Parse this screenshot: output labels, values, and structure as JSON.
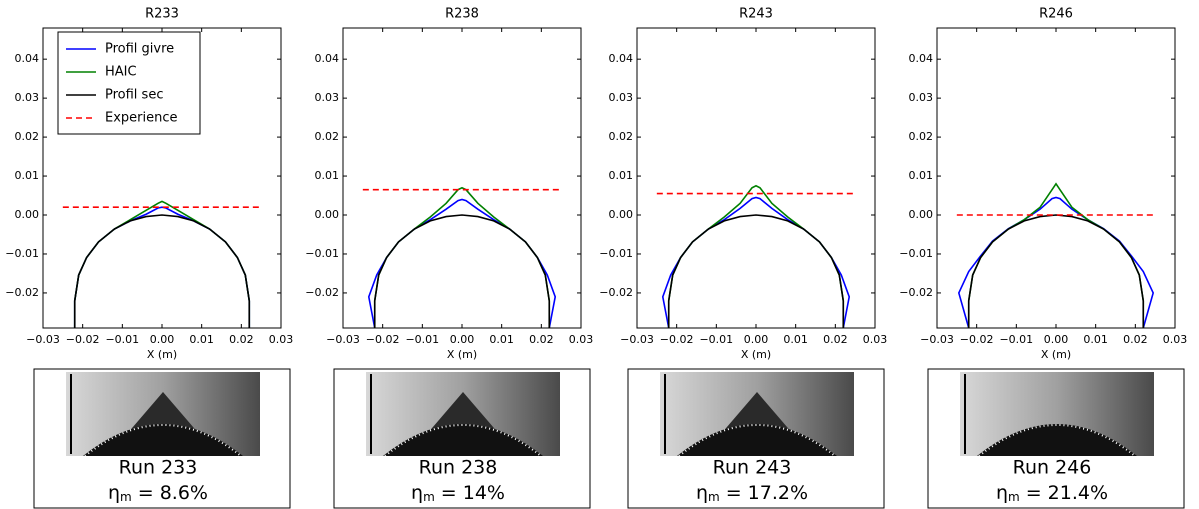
{
  "chart_data": [
    {
      "type": "line",
      "title": "R233",
      "x_label": "X (m)",
      "legend": "upper left",
      "xlim": [
        -0.03,
        0.03
      ],
      "ylim": [
        -0.029,
        0.048
      ],
      "xticks": [
        {
          "value": -0.03,
          "label": "−0.03"
        },
        {
          "value": -0.02,
          "label": "−0.02"
        },
        {
          "value": -0.01,
          "label": "−0.01"
        },
        {
          "value": 0,
          "label": "0.00"
        },
        0.01,
        0.02,
        0.03
      ],
      "yticks": [
        {
          "value": -0.02,
          "label": "−0.02"
        },
        {
          "value": -0.01,
          "label": "−0.01"
        },
        {
          "value": 0,
          "label": "0.00"
        },
        0.01,
        0.02,
        0.03,
        0.04
      ],
      "series": [
        {
          "name": "Profil givre",
          "color": "#0000ff",
          "x": [
            -0.022,
            -0.022,
            -0.021,
            -0.019,
            -0.016,
            -0.012,
            -0.008,
            -0.004,
            -0.001,
            0,
            0.001,
            0.004,
            0.008,
            0.012,
            0.016,
            0.019,
            0.021,
            0.022,
            0.022
          ],
          "values": [
            -0.029,
            -0.022,
            -0.0154,
            -0.0109,
            -0.0069,
            -0.0036,
            -0.0015,
            0.0002,
            0.0018,
            0.002,
            0.0018,
            0.0002,
            -0.0015,
            -0.0036,
            -0.0069,
            -0.0109,
            -0.0154,
            -0.022,
            -0.029
          ]
        },
        {
          "name": "HAIC",
          "color": "#008000",
          "x": [
            -0.022,
            -0.022,
            -0.021,
            -0.019,
            -0.016,
            -0.012,
            -0.008,
            -0.004,
            -0.001,
            0,
            0.001,
            0.004,
            0.008,
            0.012,
            0.016,
            0.019,
            0.021,
            0.022,
            0.022
          ],
          "values": [
            -0.029,
            -0.022,
            -0.0154,
            -0.0109,
            -0.0069,
            -0.0036,
            -0.0012,
            0.0012,
            0.003,
            0.0035,
            0.003,
            0.0012,
            -0.0012,
            -0.0036,
            -0.0069,
            -0.0109,
            -0.0154,
            -0.022,
            -0.029
          ]
        },
        {
          "name": "Profil sec",
          "color": "#000000",
          "x": [
            -0.022,
            -0.022,
            -0.021,
            -0.019,
            -0.016,
            -0.012,
            -0.008,
            -0.004,
            0,
            0.004,
            0.008,
            0.012,
            0.016,
            0.019,
            0.021,
            0.022,
            0.022
          ],
          "values": [
            -0.029,
            -0.022,
            -0.0154,
            -0.0109,
            -0.0069,
            -0.0036,
            -0.0015,
            -0.0004,
            0,
            -0.0004,
            -0.0015,
            -0.0036,
            -0.0069,
            -0.0109,
            -0.0154,
            -0.022,
            -0.029
          ]
        },
        {
          "name": "Experience",
          "color": "#ff0000",
          "style": "dashed",
          "x": [
            -0.025,
            0.025
          ],
          "values": [
            0.002,
            0.002
          ]
        }
      ]
    },
    {
      "type": "line",
      "title": "R238",
      "x_label": "X (m)",
      "xlim": [
        -0.03,
        0.03
      ],
      "ylim": [
        -0.029,
        0.048
      ],
      "xticks": [
        {
          "value": -0.03,
          "label": "−0.03"
        },
        {
          "value": -0.02,
          "label": "−0.02"
        },
        {
          "value": -0.01,
          "label": "−0.01"
        },
        {
          "value": 0,
          "label": "0.00"
        },
        0.01,
        0.02,
        0.03
      ],
      "yticks": [
        {
          "value": -0.02,
          "label": "−0.02"
        },
        {
          "value": -0.01,
          "label": "−0.01"
        },
        {
          "value": 0,
          "label": "0.00"
        },
        0.01,
        0.02,
        0.03,
        0.04
      ],
      "series": [
        {
          "color": "#0000ff",
          "x": [
            -0.022,
            -0.0235,
            -0.0215,
            -0.019,
            -0.016,
            -0.012,
            -0.008,
            -0.004,
            -0.001,
            0,
            0.001,
            0.004,
            0.008,
            0.012,
            0.016,
            0.019,
            0.0215,
            0.0235,
            0.022
          ],
          "values": [
            -0.029,
            -0.021,
            -0.0154,
            -0.0109,
            -0.0069,
            -0.0036,
            -0.0012,
            0.0015,
            0.0037,
            0.004,
            0.0037,
            0.0015,
            -0.0012,
            -0.0036,
            -0.0069,
            -0.0109,
            -0.0154,
            -0.021,
            -0.029
          ]
        },
        {
          "color": "#008000",
          "x": [
            -0.022,
            -0.022,
            -0.021,
            -0.019,
            -0.016,
            -0.012,
            -0.008,
            -0.004,
            -0.001,
            0,
            0.001,
            0.004,
            0.008,
            0.012,
            0.016,
            0.019,
            0.021,
            0.022,
            0.022
          ],
          "values": [
            -0.029,
            -0.022,
            -0.0154,
            -0.0109,
            -0.0069,
            -0.0036,
            -0.0005,
            0.003,
            0.0065,
            0.007,
            0.0065,
            0.003,
            -0.0005,
            -0.0036,
            -0.0069,
            -0.0109,
            -0.0154,
            -0.022,
            -0.029
          ]
        },
        {
          "color": "#000000",
          "x": [
            -0.022,
            -0.022,
            -0.021,
            -0.019,
            -0.016,
            -0.012,
            -0.008,
            -0.004,
            0,
            0.004,
            0.008,
            0.012,
            0.016,
            0.019,
            0.021,
            0.022,
            0.022
          ],
          "values": [
            -0.029,
            -0.022,
            -0.0154,
            -0.0109,
            -0.0069,
            -0.0036,
            -0.0015,
            -0.0004,
            0,
            -0.0004,
            -0.0015,
            -0.0036,
            -0.0069,
            -0.0109,
            -0.0154,
            -0.022,
            -0.029
          ]
        },
        {
          "color": "#ff0000",
          "style": "dashed",
          "x": [
            -0.025,
            0.025
          ],
          "values": [
            0.0065,
            0.0065
          ]
        }
      ]
    },
    {
      "type": "line",
      "title": "R243",
      "x_label": "X (m)",
      "xlim": [
        -0.03,
        0.03
      ],
      "ylim": [
        -0.029,
        0.048
      ],
      "xticks": [
        {
          "value": -0.03,
          "label": "−0.03"
        },
        {
          "value": -0.02,
          "label": "−0.02"
        },
        {
          "value": -0.01,
          "label": "−0.01"
        },
        {
          "value": 0,
          "label": "0.00"
        },
        0.01,
        0.02,
        0.03
      ],
      "yticks": [
        {
          "value": -0.02,
          "label": "−0.02"
        },
        {
          "value": -0.01,
          "label": "−0.01"
        },
        {
          "value": 0,
          "label": "0.00"
        },
        0.01,
        0.02,
        0.03,
        0.04
      ],
      "series": [
        {
          "color": "#0000ff",
          "x": [
            -0.022,
            -0.0235,
            -0.0215,
            -0.019,
            -0.016,
            -0.012,
            -0.008,
            -0.004,
            -0.001,
            0,
            0.001,
            0.004,
            0.008,
            0.012,
            0.016,
            0.019,
            0.0215,
            0.0235,
            0.022
          ],
          "values": [
            -0.029,
            -0.021,
            -0.0154,
            -0.0109,
            -0.0069,
            -0.0036,
            -0.0012,
            0.0017,
            0.0042,
            0.0045,
            0.0042,
            0.0017,
            -0.0012,
            -0.0036,
            -0.0069,
            -0.0109,
            -0.0154,
            -0.021,
            -0.029
          ]
        },
        {
          "color": "#008000",
          "x": [
            -0.022,
            -0.022,
            -0.021,
            -0.019,
            -0.016,
            -0.012,
            -0.008,
            -0.004,
            -0.001,
            0,
            0.001,
            0.004,
            0.008,
            0.012,
            0.016,
            0.019,
            0.021,
            0.022,
            0.022
          ],
          "values": [
            -0.029,
            -0.022,
            -0.0154,
            -0.0109,
            -0.0069,
            -0.0036,
            -0.0005,
            0.003,
            0.007,
            0.0075,
            0.007,
            0.003,
            -0.0005,
            -0.0036,
            -0.0069,
            -0.0109,
            -0.0154,
            -0.022,
            -0.029
          ]
        },
        {
          "color": "#000000",
          "x": [
            -0.022,
            -0.022,
            -0.021,
            -0.019,
            -0.016,
            -0.012,
            -0.008,
            -0.004,
            0,
            0.004,
            0.008,
            0.012,
            0.016,
            0.019,
            0.021,
            0.022,
            0.022
          ],
          "values": [
            -0.029,
            -0.022,
            -0.0154,
            -0.0109,
            -0.0069,
            -0.0036,
            -0.0015,
            -0.0004,
            0,
            -0.0004,
            -0.0015,
            -0.0036,
            -0.0069,
            -0.0109,
            -0.0154,
            -0.022,
            -0.029
          ]
        },
        {
          "color": "#ff0000",
          "style": "dashed",
          "x": [
            -0.025,
            0.025
          ],
          "values": [
            0.0055,
            0.0055
          ]
        }
      ]
    },
    {
      "type": "line",
      "title": "R246",
      "x_label": "X (m)",
      "xlim": [
        -0.03,
        0.03
      ],
      "ylim": [
        -0.029,
        0.048
      ],
      "xticks": [
        {
          "value": -0.03,
          "label": "−0.03"
        },
        {
          "value": -0.02,
          "label": "−0.02"
        },
        {
          "value": -0.01,
          "label": "−0.01"
        },
        {
          "value": 0,
          "label": "0.00"
        },
        0.01,
        0.02,
        0.03
      ],
      "yticks": [
        {
          "value": -0.02,
          "label": "−0.02"
        },
        {
          "value": -0.01,
          "label": "−0.01"
        },
        {
          "value": 0,
          "label": "0.00"
        },
        0.01,
        0.02,
        0.03,
        0.04
      ],
      "series": [
        {
          "color": "#0000ff",
          "x": [
            -0.022,
            -0.0245,
            -0.022,
            -0.019,
            -0.016,
            -0.012,
            -0.008,
            -0.004,
            -0.001,
            0,
            0.001,
            0.004,
            0.008,
            0.012,
            0.016,
            0.019,
            0.022,
            0.0245,
            0.022
          ],
          "values": [
            -0.029,
            -0.02,
            -0.0145,
            -0.0105,
            -0.0067,
            -0.0035,
            -0.0012,
            0.0015,
            0.0042,
            0.0045,
            0.0042,
            0.0015,
            -0.0012,
            -0.0035,
            -0.0067,
            -0.0105,
            -0.0145,
            -0.02,
            -0.029
          ]
        },
        {
          "color": "#008000",
          "x": [
            -0.022,
            -0.022,
            -0.021,
            -0.019,
            -0.016,
            -0.012,
            -0.008,
            -0.004,
            -0.001,
            0,
            0.001,
            0.004,
            0.008,
            0.012,
            0.016,
            0.019,
            0.021,
            0.022,
            0.022
          ],
          "values": [
            -0.029,
            -0.022,
            -0.0154,
            -0.0109,
            -0.0069,
            -0.0036,
            -0.0012,
            0.002,
            0.0065,
            0.008,
            0.0065,
            0.002,
            -0.0012,
            -0.0036,
            -0.0069,
            -0.0109,
            -0.0154,
            -0.022,
            -0.029
          ]
        },
        {
          "color": "#000000",
          "x": [
            -0.022,
            -0.022,
            -0.021,
            -0.019,
            -0.016,
            -0.012,
            -0.008,
            -0.004,
            0,
            0.004,
            0.008,
            0.012,
            0.016,
            0.019,
            0.021,
            0.022,
            0.022
          ],
          "values": [
            -0.029,
            -0.022,
            -0.0154,
            -0.0109,
            -0.0069,
            -0.0036,
            -0.0015,
            -0.0004,
            0,
            -0.0004,
            -0.0015,
            -0.0036,
            -0.0069,
            -0.0109,
            -0.0154,
            -0.022,
            -0.029
          ]
        },
        {
          "color": "#ff0000",
          "style": "dashed",
          "x": [
            -0.025,
            0.025
          ],
          "values": [
            0,
            0
          ]
        }
      ]
    }
  ],
  "photos": [
    {
      "run": "Run 233",
      "symbol": "η",
      "subscript": "m",
      "text": "= 8.6%"
    },
    {
      "run": "Run 238",
      "symbol": "η",
      "subscript": "m",
      "text": "= 14%"
    },
    {
      "run": "Run 243",
      "symbol": "η",
      "subscript": "m",
      "text": "= 17.2%"
    },
    {
      "run": "Run 246",
      "symbol": "η",
      "subscript": "m",
      "text": "= 21.4%"
    }
  ]
}
